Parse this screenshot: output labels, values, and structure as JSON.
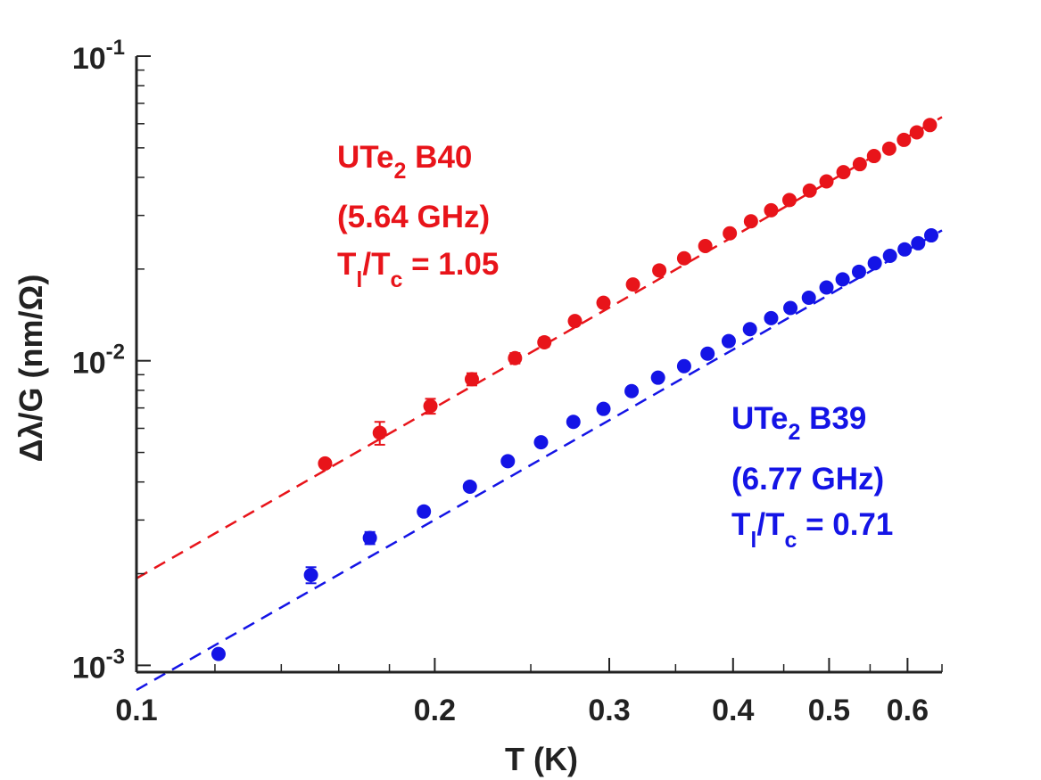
{
  "chart_data": {
    "type": "scatter",
    "xscale": "log",
    "yscale": "log",
    "xlim": [
      0.1,
      0.65
    ],
    "ylim": [
      0.00095,
      0.1
    ],
    "xlabel": "T (K)",
    "ylabel": "Δλ/G (nm/Ω)",
    "x_ticks": [
      {
        "value": 0.1,
        "label": "0.1"
      },
      {
        "value": 0.2,
        "label": "0.2"
      },
      {
        "value": 0.3,
        "label": "0.3"
      },
      {
        "value": 0.4,
        "label": "0.4"
      },
      {
        "value": 0.5,
        "label": "0.5"
      },
      {
        "value": 0.6,
        "label": "0.6"
      }
    ],
    "y_ticks": [
      {
        "value": 0.001,
        "base": "10",
        "exp": "-3"
      },
      {
        "value": 0.01,
        "base": "10",
        "exp": "-2"
      },
      {
        "value": 0.1,
        "base": "10",
        "exp": "-1"
      }
    ],
    "series": [
      {
        "name": "UTe2 B40",
        "color": "#e8141a",
        "fit": {
          "x": [
            0.1,
            0.65
          ],
          "y": [
            0.00193,
            0.0631
          ]
        },
        "annotation": {
          "sample": "UTe",
          "sample_sub": "2",
          "sample_rest": " B40",
          "freq": "(5.64 GHz)",
          "ratio_pre": "T",
          "ratio_sub1": "l",
          "ratio_mid": "/T",
          "ratio_sub2": "c",
          "ratio_post": " = 1.05"
        },
        "points": [
          {
            "x": 0.155,
            "y": 0.0046,
            "err": 0.0001
          },
          {
            "x": 0.176,
            "y": 0.0058,
            "err": 0.0005
          },
          {
            "x": 0.198,
            "y": 0.0071,
            "err": 0.0004
          },
          {
            "x": 0.218,
            "y": 0.0087,
            "err": 0.0004
          },
          {
            "x": 0.241,
            "y": 0.0102,
            "err": 0.0004
          },
          {
            "x": 0.258,
            "y": 0.0115,
            "err": 0.0004
          },
          {
            "x": 0.277,
            "y": 0.0135,
            "err": 0.0004
          },
          {
            "x": 0.296,
            "y": 0.0155,
            "err": 0.0003
          },
          {
            "x": 0.317,
            "y": 0.0178,
            "err": 0.0003
          },
          {
            "x": 0.337,
            "y": 0.0198,
            "err": 0.0003
          },
          {
            "x": 0.357,
            "y": 0.0217,
            "err": 0.0003
          },
          {
            "x": 0.375,
            "y": 0.0238,
            "err": 0.0003
          },
          {
            "x": 0.397,
            "y": 0.0262,
            "err": 0.0003
          },
          {
            "x": 0.417,
            "y": 0.0287,
            "err": 0.0003
          },
          {
            "x": 0.437,
            "y": 0.0312,
            "err": 0.0003
          },
          {
            "x": 0.456,
            "y": 0.0337,
            "err": 0.0003
          },
          {
            "x": 0.478,
            "y": 0.0362,
            "err": 0.0003
          },
          {
            "x": 0.497,
            "y": 0.0388,
            "err": 0.0003
          },
          {
            "x": 0.517,
            "y": 0.0416,
            "err": 0.0003
          },
          {
            "x": 0.537,
            "y": 0.0442,
            "err": 0.0003
          },
          {
            "x": 0.555,
            "y": 0.047,
            "err": 0.0003
          },
          {
            "x": 0.575,
            "y": 0.0497,
            "err": 0.0003
          },
          {
            "x": 0.595,
            "y": 0.0531,
            "err": 0.0003
          },
          {
            "x": 0.613,
            "y": 0.0562,
            "err": 0.0003
          },
          {
            "x": 0.632,
            "y": 0.0594,
            "err": 0.0003
          }
        ]
      },
      {
        "name": "UTe2 B39",
        "color": "#1414e6",
        "fit": {
          "x": [
            0.1,
            0.65
          ],
          "y": [
            0.00083,
            0.0268
          ]
        },
        "annotation": {
          "sample": "UTe",
          "sample_sub": "2",
          "sample_rest": " B39",
          "freq": "(6.77 GHz)",
          "ratio_pre": "T",
          "ratio_sub1": "l",
          "ratio_mid": "/T",
          "ratio_sub2": "c",
          "ratio_post": " = 0.71"
        },
        "points": [
          {
            "x": 0.121,
            "y": 0.00109,
            "err": 3e-05
          },
          {
            "x": 0.15,
            "y": 0.00198,
            "err": 0.00012
          },
          {
            "x": 0.172,
            "y": 0.00262,
            "err": 0.00012
          },
          {
            "x": 0.195,
            "y": 0.0032,
            "err": 0.0001
          },
          {
            "x": 0.217,
            "y": 0.00386,
            "err": 8e-05
          },
          {
            "x": 0.237,
            "y": 0.00468,
            "err": 8e-05
          },
          {
            "x": 0.256,
            "y": 0.0054,
            "err": 8e-05
          },
          {
            "x": 0.276,
            "y": 0.0063,
            "err": 8e-05
          },
          {
            "x": 0.296,
            "y": 0.00695,
            "err": 8e-05
          },
          {
            "x": 0.316,
            "y": 0.00795,
            "err": 8e-05
          },
          {
            "x": 0.336,
            "y": 0.0088,
            "err": 8e-05
          },
          {
            "x": 0.357,
            "y": 0.0096,
            "err": 8e-05
          },
          {
            "x": 0.377,
            "y": 0.01055,
            "err": 0.0001
          },
          {
            "x": 0.396,
            "y": 0.0116,
            "err": 0.0001
          },
          {
            "x": 0.416,
            "y": 0.0127,
            "err": 0.0001
          },
          {
            "x": 0.437,
            "y": 0.0138,
            "err": 0.0001
          },
          {
            "x": 0.457,
            "y": 0.0149,
            "err": 0.0001
          },
          {
            "x": 0.477,
            "y": 0.0161,
            "err": 0.0001
          },
          {
            "x": 0.497,
            "y": 0.0174,
            "err": 0.0001
          },
          {
            "x": 0.516,
            "y": 0.0185,
            "err": 0.0001
          },
          {
            "x": 0.536,
            "y": 0.0196,
            "err": 0.0001
          },
          {
            "x": 0.556,
            "y": 0.0209,
            "err": 0.0001
          },
          {
            "x": 0.576,
            "y": 0.0221,
            "err": 0.0001
          },
          {
            "x": 0.596,
            "y": 0.0232,
            "err": 0.0001
          },
          {
            "x": 0.615,
            "y": 0.0243,
            "err": 0.0001
          },
          {
            "x": 0.634,
            "y": 0.0258,
            "err": 0.0001
          }
        ]
      }
    ]
  }
}
